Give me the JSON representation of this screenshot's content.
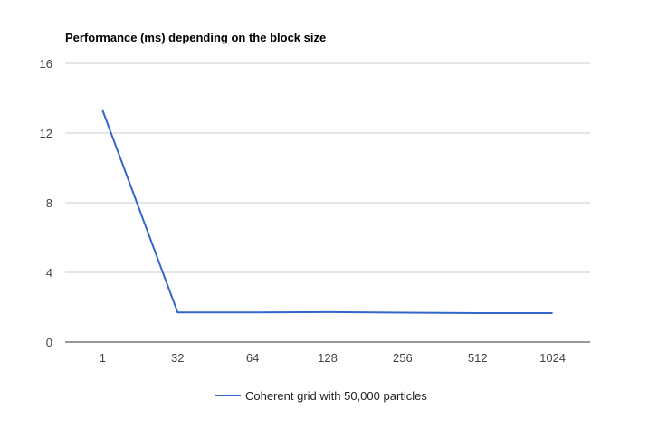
{
  "chart_data": {
    "type": "line",
    "title": "Performance (ms) depending on the block size",
    "xlabel": "",
    "ylabel": "",
    "categories": [
      "1",
      "32",
      "64",
      "128",
      "256",
      "512",
      "1024"
    ],
    "series": [
      {
        "name": "Coherent grid with 50,000 particles",
        "values": [
          13.3,
          1.7,
          1.7,
          1.72,
          1.69,
          1.66,
          1.66
        ],
        "color": "#3366cc"
      }
    ],
    "ylim": [
      0,
      16
    ],
    "yticks": [
      "0",
      "4",
      "8",
      "12",
      "16"
    ],
    "grid": true,
    "legend": "bottom"
  }
}
